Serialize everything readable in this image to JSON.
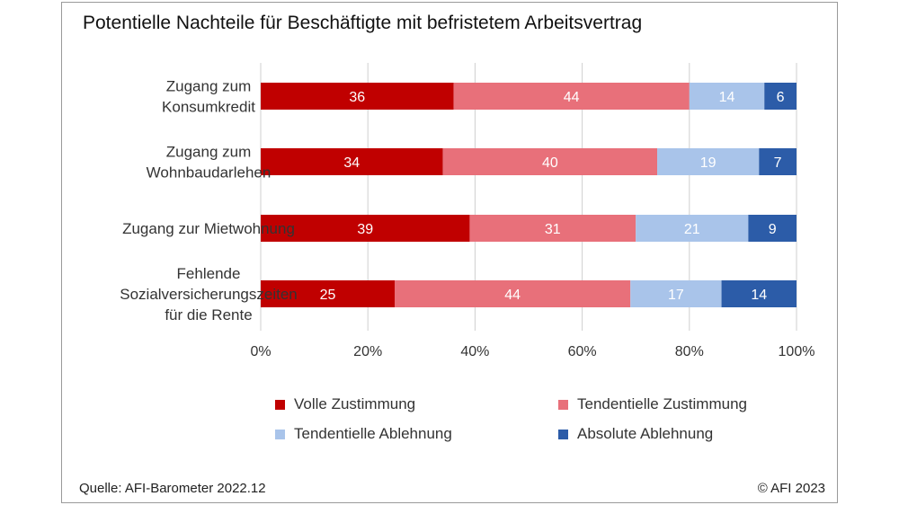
{
  "title": "Potentielle Nachteile für Beschäftigte mit befristetem Arbeitsvertrag",
  "source": "Quelle:  AFI-Barometer 2022.12",
  "copyright": "© AFI 2023",
  "chart_data": {
    "type": "bar",
    "orientation": "horizontal",
    "stacked": true,
    "categories": [
      [
        "Zugang zum",
        "Konsumkredit"
      ],
      [
        "Zugang zum",
        "Wohnbaudarlehen"
      ],
      [
        "Zugang zur Mietwohnung"
      ],
      [
        "Fehlende",
        "Sozialversicherungszeiten",
        "für die Rente"
      ]
    ],
    "series": [
      {
        "name": "Volle Zustimmung",
        "color": "#c00000",
        "values": [
          36,
          34,
          39,
          25
        ]
      },
      {
        "name": "Tendentielle Zustimmung",
        "color": "#e8707a",
        "values": [
          44,
          40,
          31,
          44
        ]
      },
      {
        "name": "Tendentielle Ablehnung",
        "color": "#a9c4ea",
        "values": [
          14,
          19,
          21,
          17
        ]
      },
      {
        "name": "Absolute Ablehnung",
        "color": "#2c5ca8",
        "values": [
          6,
          7,
          9,
          14
        ]
      }
    ],
    "xlim": [
      0,
      100
    ],
    "xticks": [
      "0%",
      "20%",
      "40%",
      "60%",
      "80%",
      "100%"
    ],
    "grid": true,
    "legend_position": "bottom"
  }
}
